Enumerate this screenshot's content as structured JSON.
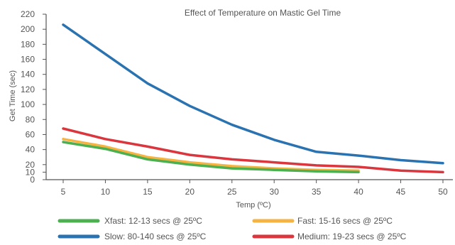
{
  "chart_data": {
    "type": "line",
    "title": "Effect of Temperature on Mastic Gel Time",
    "xlabel": "Temp (ºC)",
    "ylabel": "Get Time (sec)",
    "x_ticks": [
      5,
      10,
      15,
      20,
      25,
      30,
      35,
      40,
      45,
      50
    ],
    "xlim": [
      5,
      50
    ],
    "y_ticks": [
      0,
      10,
      20,
      40,
      60,
      80,
      100,
      120,
      140,
      160,
      180,
      200,
      220
    ],
    "ylim": [
      0,
      220
    ],
    "grid": false,
    "legend_placement": "bottom",
    "series": [
      {
        "name": "Xfast: 12-13 secs @ 25ºC",
        "color": "#4caf50",
        "x": [
          5,
          10,
          15,
          20,
          25,
          30,
          35,
          40
        ],
        "y": [
          50,
          41,
          27,
          20,
          15,
          13,
          11,
          10
        ]
      },
      {
        "name": "Fast: 15-16 secs @ 25ºC",
        "color": "#f5b342",
        "x": [
          5,
          10,
          15,
          20,
          25,
          30,
          35,
          40
        ],
        "y": [
          54,
          44,
          30,
          23,
          18,
          15,
          13,
          12
        ]
      },
      {
        "name": "Slow: 80-140 secs @ 25ºC",
        "color": "#2a73b0",
        "x": [
          5,
          10,
          15,
          20,
          25,
          30,
          35,
          40,
          45,
          50
        ],
        "y": [
          206,
          167,
          128,
          98,
          73,
          53,
          37,
          32,
          26,
          22
        ]
      },
      {
        "name": "Medium: 19-23 secs @ 25ºC",
        "color": "#d9363e",
        "x": [
          5,
          10,
          15,
          20,
          25,
          30,
          35,
          40,
          45,
          50
        ],
        "y": [
          68,
          54,
          44,
          33,
          27,
          23,
          19,
          17,
          12,
          10
        ]
      }
    ],
    "axis_color": "#555555"
  }
}
